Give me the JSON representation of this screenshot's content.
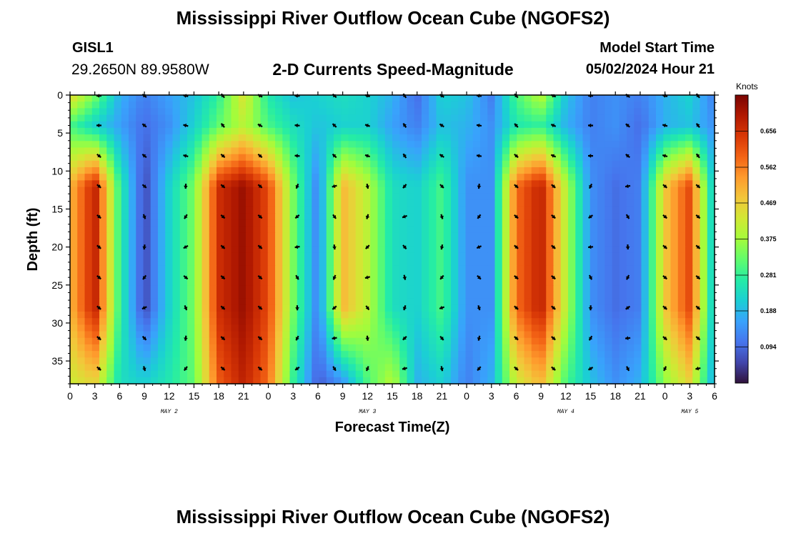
{
  "header": {
    "title": "Mississippi River Outflow Ocean Cube (NGOFS2)",
    "station_name": "GISL1",
    "station_coords": "29.2650N  89.9580W",
    "subtitle": "2-D Currents Speed-Magnitude",
    "model_label": "Model Start Time",
    "model_time": "05/02/2024 Hour 21"
  },
  "footer": {
    "title": "Mississippi River Outflow Ocean Cube (NGOFS2)"
  },
  "chart_data": {
    "type": "heatmap",
    "title": "2-D Currents Speed-Magnitude",
    "xlabel": "Forecast Time(Z)",
    "ylabel": "Depth (ft)",
    "x_units": "hours since May 2 00Z",
    "xlim": [
      0,
      78
    ],
    "ylim": [
      0,
      38
    ],
    "y_inverted": true,
    "x_tick_values": [
      0,
      3,
      6,
      9,
      12,
      15,
      18,
      21,
      24,
      27,
      30,
      33,
      36,
      39,
      42,
      45,
      48,
      51,
      54,
      57,
      60,
      63,
      66,
      69,
      72,
      75,
      78
    ],
    "x_tick_labels": [
      "0",
      "3",
      "6",
      "9",
      "12",
      "15",
      "18",
      "21",
      "0",
      "3",
      "6",
      "9",
      "12",
      "15",
      "18",
      "21",
      "0",
      "3",
      "6",
      "9",
      "12",
      "15",
      "18",
      "21",
      "0",
      "3",
      "6"
    ],
    "y_ticks": [
      0,
      5,
      10,
      15,
      20,
      25,
      30,
      35
    ],
    "date_labels": [
      {
        "text": "MAY 2",
        "x": 12
      },
      {
        "text": "MAY 3",
        "x": 36
      },
      {
        "text": "MAY 4",
        "x": 60
      },
      {
        "text": "MAY 5",
        "x": 75
      }
    ],
    "colorbar": {
      "unit": "Knots",
      "min": 0.0,
      "max": 0.75,
      "ticks": [
        "0.094",
        "0.188",
        "0.281",
        "0.375",
        "0.469",
        "0.562",
        "0.656"
      ],
      "tick_values": [
        0.094,
        0.188,
        0.281,
        0.375,
        0.469,
        0.562,
        0.656
      ],
      "colors": [
        "#30123b",
        "#4145ab",
        "#4675ed",
        "#39a2fc",
        "#1bcfd4",
        "#24eca6",
        "#61fc6c",
        "#a4fc3b",
        "#d1e834",
        "#f3c63a",
        "#fe9b2d",
        "#f36315",
        "#d93806",
        "#b11901",
        "#7a0402"
      ]
    },
    "vector_x": [
      3.5,
      9,
      14,
      18.5,
      23,
      27.5,
      32,
      36,
      40.5,
      45,
      49.5,
      54,
      58.5,
      63,
      67.5,
      72,
      76
    ],
    "vector_y": [
      0,
      4,
      8,
      12,
      16,
      20,
      24,
      28,
      32,
      36
    ],
    "column_speed_profiles": [
      {
        "x": 0,
        "surface": 0.46,
        "upper": 0.3,
        "mid": 0.5,
        "bottom": 0.42
      },
      {
        "x": 3,
        "surface": 0.34,
        "upper": 0.22,
        "mid": 0.68,
        "bottom": 0.46
      },
      {
        "x": 6,
        "surface": 0.18,
        "upper": 0.16,
        "mid": 0.28,
        "bottom": 0.24
      },
      {
        "x": 9,
        "surface": 0.12,
        "upper": 0.1,
        "mid": 0.06,
        "bottom": 0.22
      },
      {
        "x": 12,
        "surface": 0.16,
        "upper": 0.14,
        "mid": 0.22,
        "bottom": 0.26
      },
      {
        "x": 15,
        "surface": 0.2,
        "upper": 0.22,
        "mid": 0.34,
        "bottom": 0.32
      },
      {
        "x": 18,
        "surface": 0.28,
        "upper": 0.32,
        "mid": 0.66,
        "bottom": 0.6
      },
      {
        "x": 21,
        "surface": 0.44,
        "upper": 0.4,
        "mid": 0.72,
        "bottom": 0.68
      },
      {
        "x": 24,
        "surface": 0.26,
        "upper": 0.3,
        "mid": 0.62,
        "bottom": 0.58
      },
      {
        "x": 27,
        "surface": 0.2,
        "upper": 0.24,
        "mid": 0.34,
        "bottom": 0.28
      },
      {
        "x": 30,
        "surface": 0.22,
        "upper": 0.2,
        "mid": 0.12,
        "bottom": 0.08
      },
      {
        "x": 33,
        "surface": 0.24,
        "upper": 0.22,
        "mid": 0.5,
        "bottom": 0.14
      },
      {
        "x": 36,
        "surface": 0.22,
        "upper": 0.22,
        "mid": 0.4,
        "bottom": 0.3
      },
      {
        "x": 39,
        "surface": 0.18,
        "upper": 0.16,
        "mid": 0.24,
        "bottom": 0.4
      },
      {
        "x": 42,
        "surface": 0.1,
        "upper": 0.12,
        "mid": 0.22,
        "bottom": 0.18
      },
      {
        "x": 45,
        "surface": 0.22,
        "upper": 0.2,
        "mid": 0.3,
        "bottom": 0.22
      },
      {
        "x": 48,
        "surface": 0.2,
        "upper": 0.18,
        "mid": 0.14,
        "bottom": 0.12
      },
      {
        "x": 51,
        "surface": 0.12,
        "upper": 0.14,
        "mid": 0.14,
        "bottom": 0.18
      },
      {
        "x": 54,
        "surface": 0.3,
        "upper": 0.26,
        "mid": 0.58,
        "bottom": 0.42
      },
      {
        "x": 57,
        "surface": 0.4,
        "upper": 0.28,
        "mid": 0.68,
        "bottom": 0.5
      },
      {
        "x": 60,
        "surface": 0.2,
        "upper": 0.18,
        "mid": 0.4,
        "bottom": 0.3
      },
      {
        "x": 63,
        "surface": 0.12,
        "upper": 0.12,
        "mid": 0.14,
        "bottom": 0.2
      },
      {
        "x": 66,
        "surface": 0.14,
        "upper": 0.14,
        "mid": 0.1,
        "bottom": 0.14
      },
      {
        "x": 69,
        "surface": 0.12,
        "upper": 0.1,
        "mid": 0.12,
        "bottom": 0.18
      },
      {
        "x": 72,
        "surface": 0.18,
        "upper": 0.18,
        "mid": 0.48,
        "bottom": 0.36
      },
      {
        "x": 75,
        "surface": 0.22,
        "upper": 0.2,
        "mid": 0.62,
        "bottom": 0.46
      },
      {
        "x": 78,
        "surface": 0.12,
        "upper": 0.14,
        "mid": 0.18,
        "bottom": 0.16
      }
    ]
  }
}
